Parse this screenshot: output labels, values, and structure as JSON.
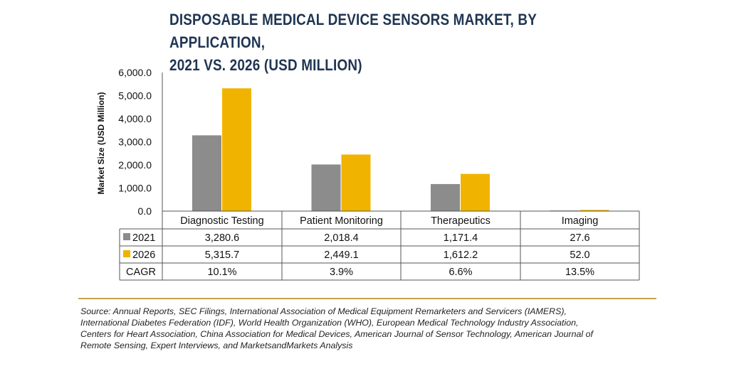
{
  "title": {
    "line1": "DISPOSABLE MEDICAL DEVICE SENSORS MARKET, BY APPLICATION,",
    "line2": "2021 VS. 2026 (USD MILLION)"
  },
  "chart_data": {
    "type": "bar",
    "ylabel": "Market Size (USD Million)",
    "ylim": [
      0,
      6000
    ],
    "yticks": [
      "0.0",
      "1,000.0",
      "2,000.0",
      "3,000.0",
      "4,000.0",
      "5,000.0",
      "6,000.0"
    ],
    "categories": [
      "Diagnostic Testing",
      "Patient Monitoring",
      "Therapeutics",
      "Imaging"
    ],
    "series": [
      {
        "name": "2021",
        "color": "#8c8c8c",
        "values": [
          3280.6,
          2018.4,
          1171.4,
          27.6
        ],
        "labels": [
          "3,280.6",
          "2,018.4",
          "1,171.4",
          "27.6"
        ]
      },
      {
        "name": "2026",
        "color": "#f0b400",
        "values": [
          5315.7,
          2449.1,
          1612.2,
          52.0
        ],
        "labels": [
          "5,315.7",
          "2,449.1",
          "1,612.2",
          "52.0"
        ]
      }
    ],
    "table": {
      "cagr_label": "CAGR",
      "cagr": [
        "10.1%",
        "3.9%",
        "6.6%",
        "13.5%"
      ]
    },
    "grid": false,
    "legend": "data-table"
  },
  "source": {
    "line1": "Source: Annual Reports, SEC Filings, International Association of Medical Equipment Remarketers and Servicers (IAMERS),",
    "line2": "International Diabetes Federation (IDF), World Health Organization (WHO), European Medical Technology Industry Association,",
    "line3": "Centers for Heart Association, China Association for Medical Devices, American Journal of Sensor Technology, American Journal of",
    "line4": "Remote Sensing, Expert Interviews, and MarketsandMarkets Analysis"
  }
}
